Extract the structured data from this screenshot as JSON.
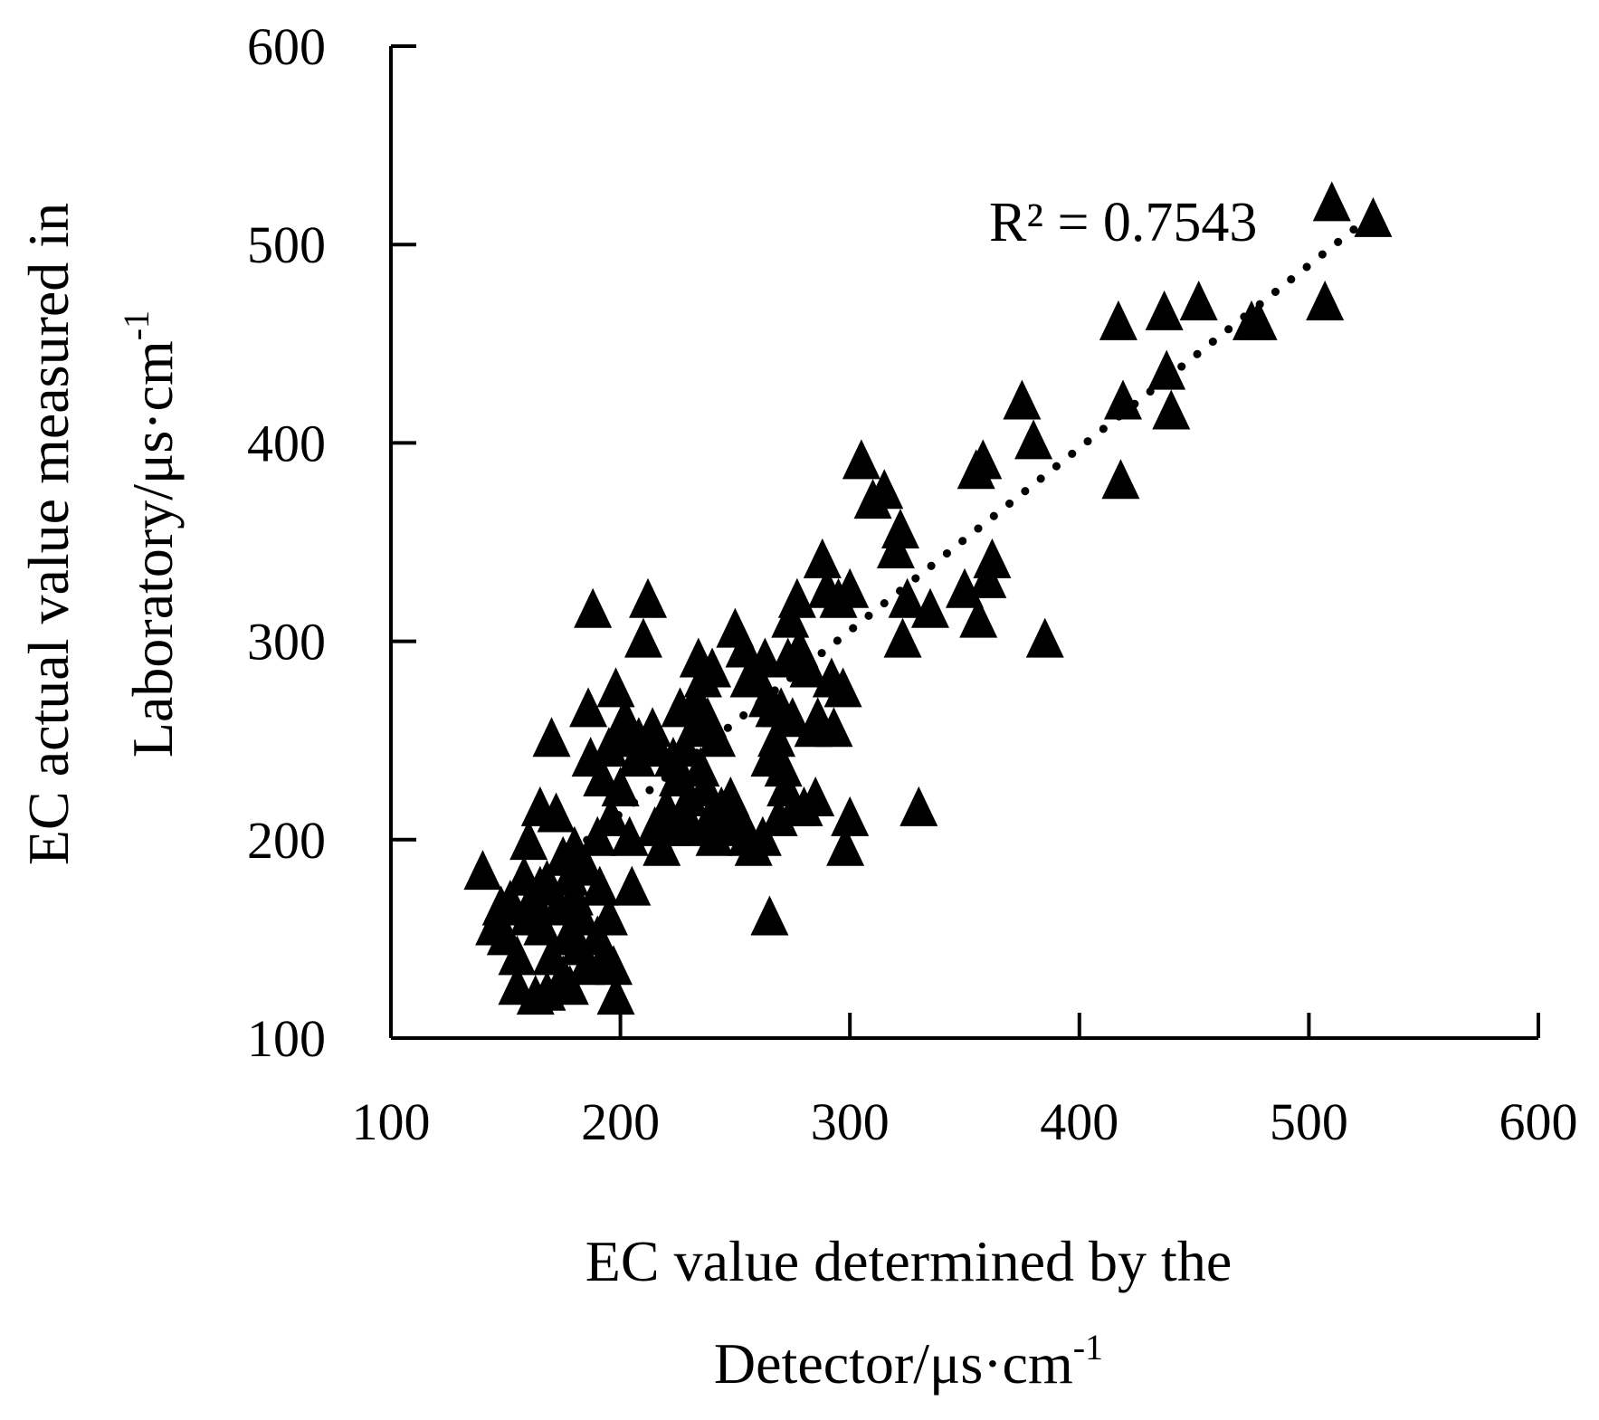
{
  "chart_data": {
    "type": "scatter",
    "xlabel_line1": "EC value determined by the",
    "xlabel_line2": "Detector/μs·cm",
    "xlabel_sup": "-1",
    "ylabel_line1": "EC actual value measured in",
    "ylabel_line2": "Laboratory/μs·cm",
    "ylabel_sup": "-1",
    "xlim": [
      100,
      600
    ],
    "ylim": [
      100,
      600
    ],
    "xticks": [
      100,
      200,
      300,
      400,
      500,
      600
    ],
    "yticks": [
      100,
      200,
      300,
      400,
      500,
      600
    ],
    "xtick_labels": [
      "100",
      "200",
      "300",
      "400",
      "500",
      "600"
    ],
    "ytick_labels": [
      "100",
      "200",
      "300",
      "400",
      "500",
      "600"
    ],
    "grid": false,
    "annotation": "R² = 0.7543",
    "marker": "filled-triangle",
    "marker_color": "#000000",
    "trendline": {
      "style": "dotted",
      "from": [
        165,
        181
      ],
      "to": [
        520,
        508
      ]
    },
    "points": [
      [
        140,
        183
      ],
      [
        145,
        155
      ],
      [
        148,
        165
      ],
      [
        150,
        150
      ],
      [
        152,
        168
      ],
      [
        155,
        140
      ],
      [
        155,
        125
      ],
      [
        158,
        180
      ],
      [
        160,
        160
      ],
      [
        160,
        198
      ],
      [
        162,
        170
      ],
      [
        163,
        120
      ],
      [
        165,
        215
      ],
      [
        165,
        175
      ],
      [
        166,
        155
      ],
      [
        168,
        122
      ],
      [
        168,
        178
      ],
      [
        170,
        250
      ],
      [
        170,
        140
      ],
      [
        172,
        212
      ],
      [
        173,
        165
      ],
      [
        175,
        190
      ],
      [
        175,
        130
      ],
      [
        177,
        150
      ],
      [
        178,
        125
      ],
      [
        178,
        180
      ],
      [
        180,
        170
      ],
      [
        180,
        195
      ],
      [
        182,
        145
      ],
      [
        183,
        160
      ],
      [
        185,
        135
      ],
      [
        185,
        185
      ],
      [
        186,
        265
      ],
      [
        187,
        240
      ],
      [
        188,
        315
      ],
      [
        190,
        150
      ],
      [
        190,
        200
      ],
      [
        191,
        175
      ],
      [
        192,
        230
      ],
      [
        193,
        140
      ],
      [
        195,
        160
      ],
      [
        195,
        245
      ],
      [
        196,
        210
      ],
      [
        197,
        135
      ],
      [
        198,
        120
      ],
      [
        198,
        275
      ],
      [
        200,
        250
      ],
      [
        200,
        225
      ],
      [
        202,
        260
      ],
      [
        204,
        200
      ],
      [
        205,
        175
      ],
      [
        207,
        240
      ],
      [
        208,
        250
      ],
      [
        210,
        300
      ],
      [
        212,
        320
      ],
      [
        214,
        255
      ],
      [
        215,
        205
      ],
      [
        216,
        245
      ],
      [
        218,
        195
      ],
      [
        220,
        215
      ],
      [
        222,
        205
      ],
      [
        223,
        240
      ],
      [
        225,
        230
      ],
      [
        226,
        265
      ],
      [
        228,
        245
      ],
      [
        229,
        210
      ],
      [
        230,
        220
      ],
      [
        231,
        205
      ],
      [
        232,
        255
      ],
      [
        233,
        270
      ],
      [
        234,
        290
      ],
      [
        235,
        235
      ],
      [
        236,
        280
      ],
      [
        237,
        225
      ],
      [
        238,
        260
      ],
      [
        239,
        210
      ],
      [
        240,
        285
      ],
      [
        241,
        200
      ],
      [
        242,
        250
      ],
      [
        244,
        215
      ],
      [
        245,
        205
      ],
      [
        246,
        210
      ],
      [
        248,
        220
      ],
      [
        250,
        305
      ],
      [
        252,
        210
      ],
      [
        254,
        295
      ],
      [
        255,
        200
      ],
      [
        256,
        280
      ],
      [
        258,
        195
      ],
      [
        260,
        280
      ],
      [
        262,
        200
      ],
      [
        263,
        290
      ],
      [
        264,
        270
      ],
      [
        265,
        240
      ],
      [
        265,
        160
      ],
      [
        267,
        265
      ],
      [
        268,
        250
      ],
      [
        269,
        210
      ],
      [
        270,
        265
      ],
      [
        271,
        235
      ],
      [
        272,
        225
      ],
      [
        273,
        290
      ],
      [
        274,
        310
      ],
      [
        275,
        260
      ],
      [
        276,
        215
      ],
      [
        277,
        320
      ],
      [
        278,
        295
      ],
      [
        280,
        215
      ],
      [
        282,
        285
      ],
      [
        284,
        255
      ],
      [
        285,
        220
      ],
      [
        286,
        260
      ],
      [
        288,
        340
      ],
      [
        290,
        325
      ],
      [
        292,
        280
      ],
      [
        293,
        255
      ],
      [
        295,
        320
      ],
      [
        297,
        275
      ],
      [
        298,
        195
      ],
      [
        300,
        210
      ],
      [
        300,
        325
      ],
      [
        305,
        390
      ],
      [
        310,
        370
      ],
      [
        315,
        375
      ],
      [
        320,
        345
      ],
      [
        322,
        355
      ],
      [
        323,
        300
      ],
      [
        325,
        320
      ],
      [
        330,
        215
      ],
      [
        335,
        315
      ],
      [
        350,
        325
      ],
      [
        355,
        385
      ],
      [
        356,
        310
      ],
      [
        358,
        390
      ],
      [
        360,
        330
      ],
      [
        362,
        340
      ],
      [
        375,
        420
      ],
      [
        380,
        400
      ],
      [
        385,
        300
      ],
      [
        417,
        460
      ],
      [
        418,
        380
      ],
      [
        419,
        420
      ],
      [
        437,
        465
      ],
      [
        438,
        435
      ],
      [
        440,
        415
      ],
      [
        452,
        470
      ],
      [
        475,
        460
      ],
      [
        478,
        460
      ],
      [
        507,
        470
      ],
      [
        510,
        520
      ],
      [
        528,
        512
      ]
    ]
  }
}
